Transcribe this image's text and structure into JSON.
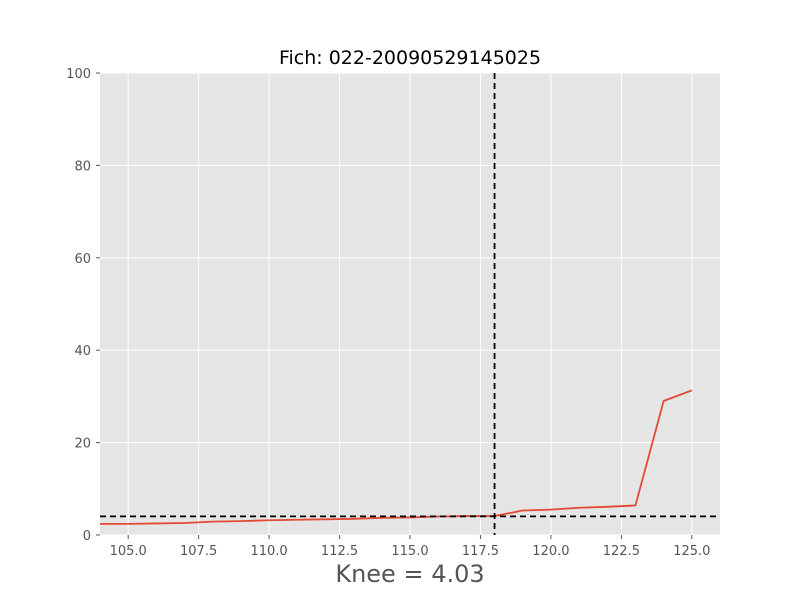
{
  "chart_data": {
    "type": "line",
    "title": "Fich: 022-20090529145025",
    "xlabel": "Knee = 4.03",
    "ylabel": "",
    "xlim": [
      104.0,
      126.0
    ],
    "ylim": [
      0,
      100
    ],
    "xticks": [
      105.0,
      107.5,
      110.0,
      112.5,
      115.0,
      117.5,
      120.0,
      122.5,
      125.0
    ],
    "xtick_labels": [
      "105.0",
      "107.5",
      "110.0",
      "112.5",
      "115.0",
      "117.5",
      "120.0",
      "122.5",
      "125.0"
    ],
    "yticks": [
      0,
      20,
      40,
      60,
      80,
      100
    ],
    "ytick_labels": [
      "0",
      "20",
      "40",
      "60",
      "80",
      "100"
    ],
    "grid": true,
    "series": [
      {
        "name": "curve",
        "color": "#e24a33",
        "x": [
          104,
          105,
          106,
          107,
          108,
          109,
          110,
          111,
          112,
          113,
          114,
          115,
          116,
          117,
          118,
          119,
          120,
          121,
          122,
          123,
          124,
          125
        ],
        "y": [
          2.4,
          2.4,
          2.5,
          2.6,
          2.9,
          3.0,
          3.2,
          3.3,
          3.4,
          3.5,
          3.7,
          3.8,
          4.0,
          4.1,
          4.1,
          5.3,
          5.5,
          5.9,
          6.1,
          6.4,
          29.0,
          31.3
        ]
      }
    ],
    "reference_lines": [
      {
        "orientation": "vertical",
        "value": 118.0,
        "style": "dashed",
        "color": "#000000"
      },
      {
        "orientation": "horizontal",
        "value": 4.03,
        "style": "dashed",
        "color": "#000000"
      }
    ],
    "colors": {
      "background": "#e5e5e5",
      "grid": "#ffffff",
      "tick_text": "#555555"
    }
  }
}
